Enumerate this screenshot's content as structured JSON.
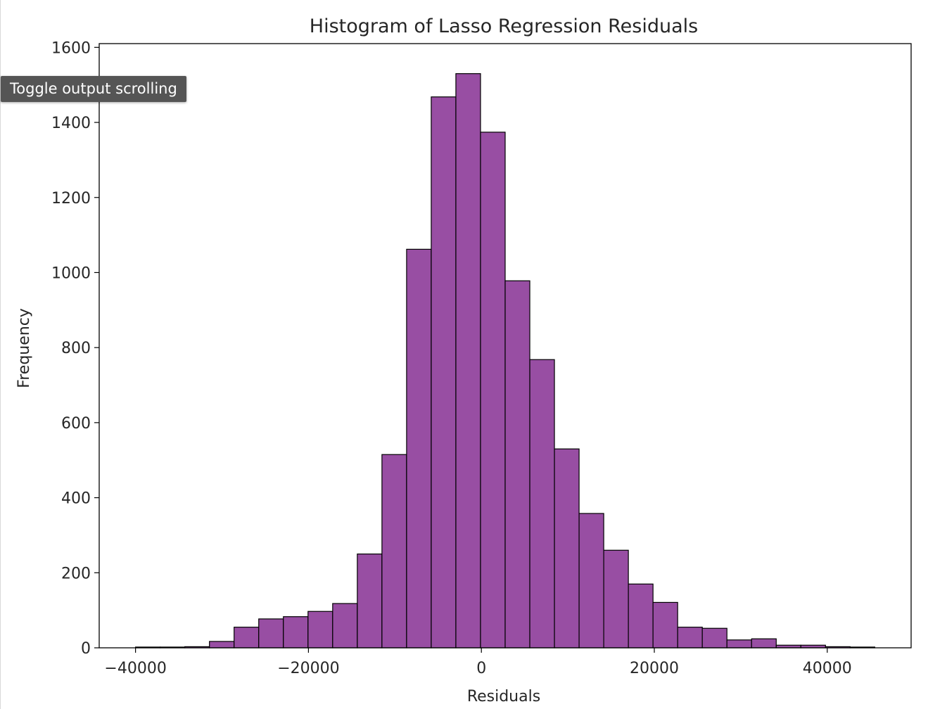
{
  "tooltip": {
    "text": "Toggle output scrolling"
  },
  "chart_data": {
    "type": "bar",
    "title": "Histogram of Lasso Regression Residuals",
    "xlabel": "Residuals",
    "ylabel": "Frequency",
    "xlim": [
      -44200,
      49700
    ],
    "ylim": [
      0,
      1610
    ],
    "xticks": [
      -40000,
      -20000,
      0,
      20000,
      40000
    ],
    "xtick_labels": [
      "−40000",
      "−20000",
      "0",
      "20000",
      "40000"
    ],
    "yticks": [
      0,
      200,
      400,
      600,
      800,
      1000,
      1200,
      1400,
      1600
    ],
    "ytick_labels": [
      "0",
      "200",
      "400",
      "600",
      "800",
      "1000",
      "1200",
      "1400",
      "1600"
    ],
    "bar_color": "#984ea3",
    "edge_color": "#000000",
    "grid": false,
    "bins": {
      "start": -40000,
      "width": 2850,
      "counts": [
        2,
        2,
        3,
        17,
        55,
        77,
        83,
        97,
        118,
        250,
        515,
        1062,
        1468,
        1530,
        1374,
        978,
        768,
        530,
        358,
        260,
        170,
        121,
        55,
        52,
        21,
        24,
        7,
        7,
        3,
        2
      ]
    }
  }
}
